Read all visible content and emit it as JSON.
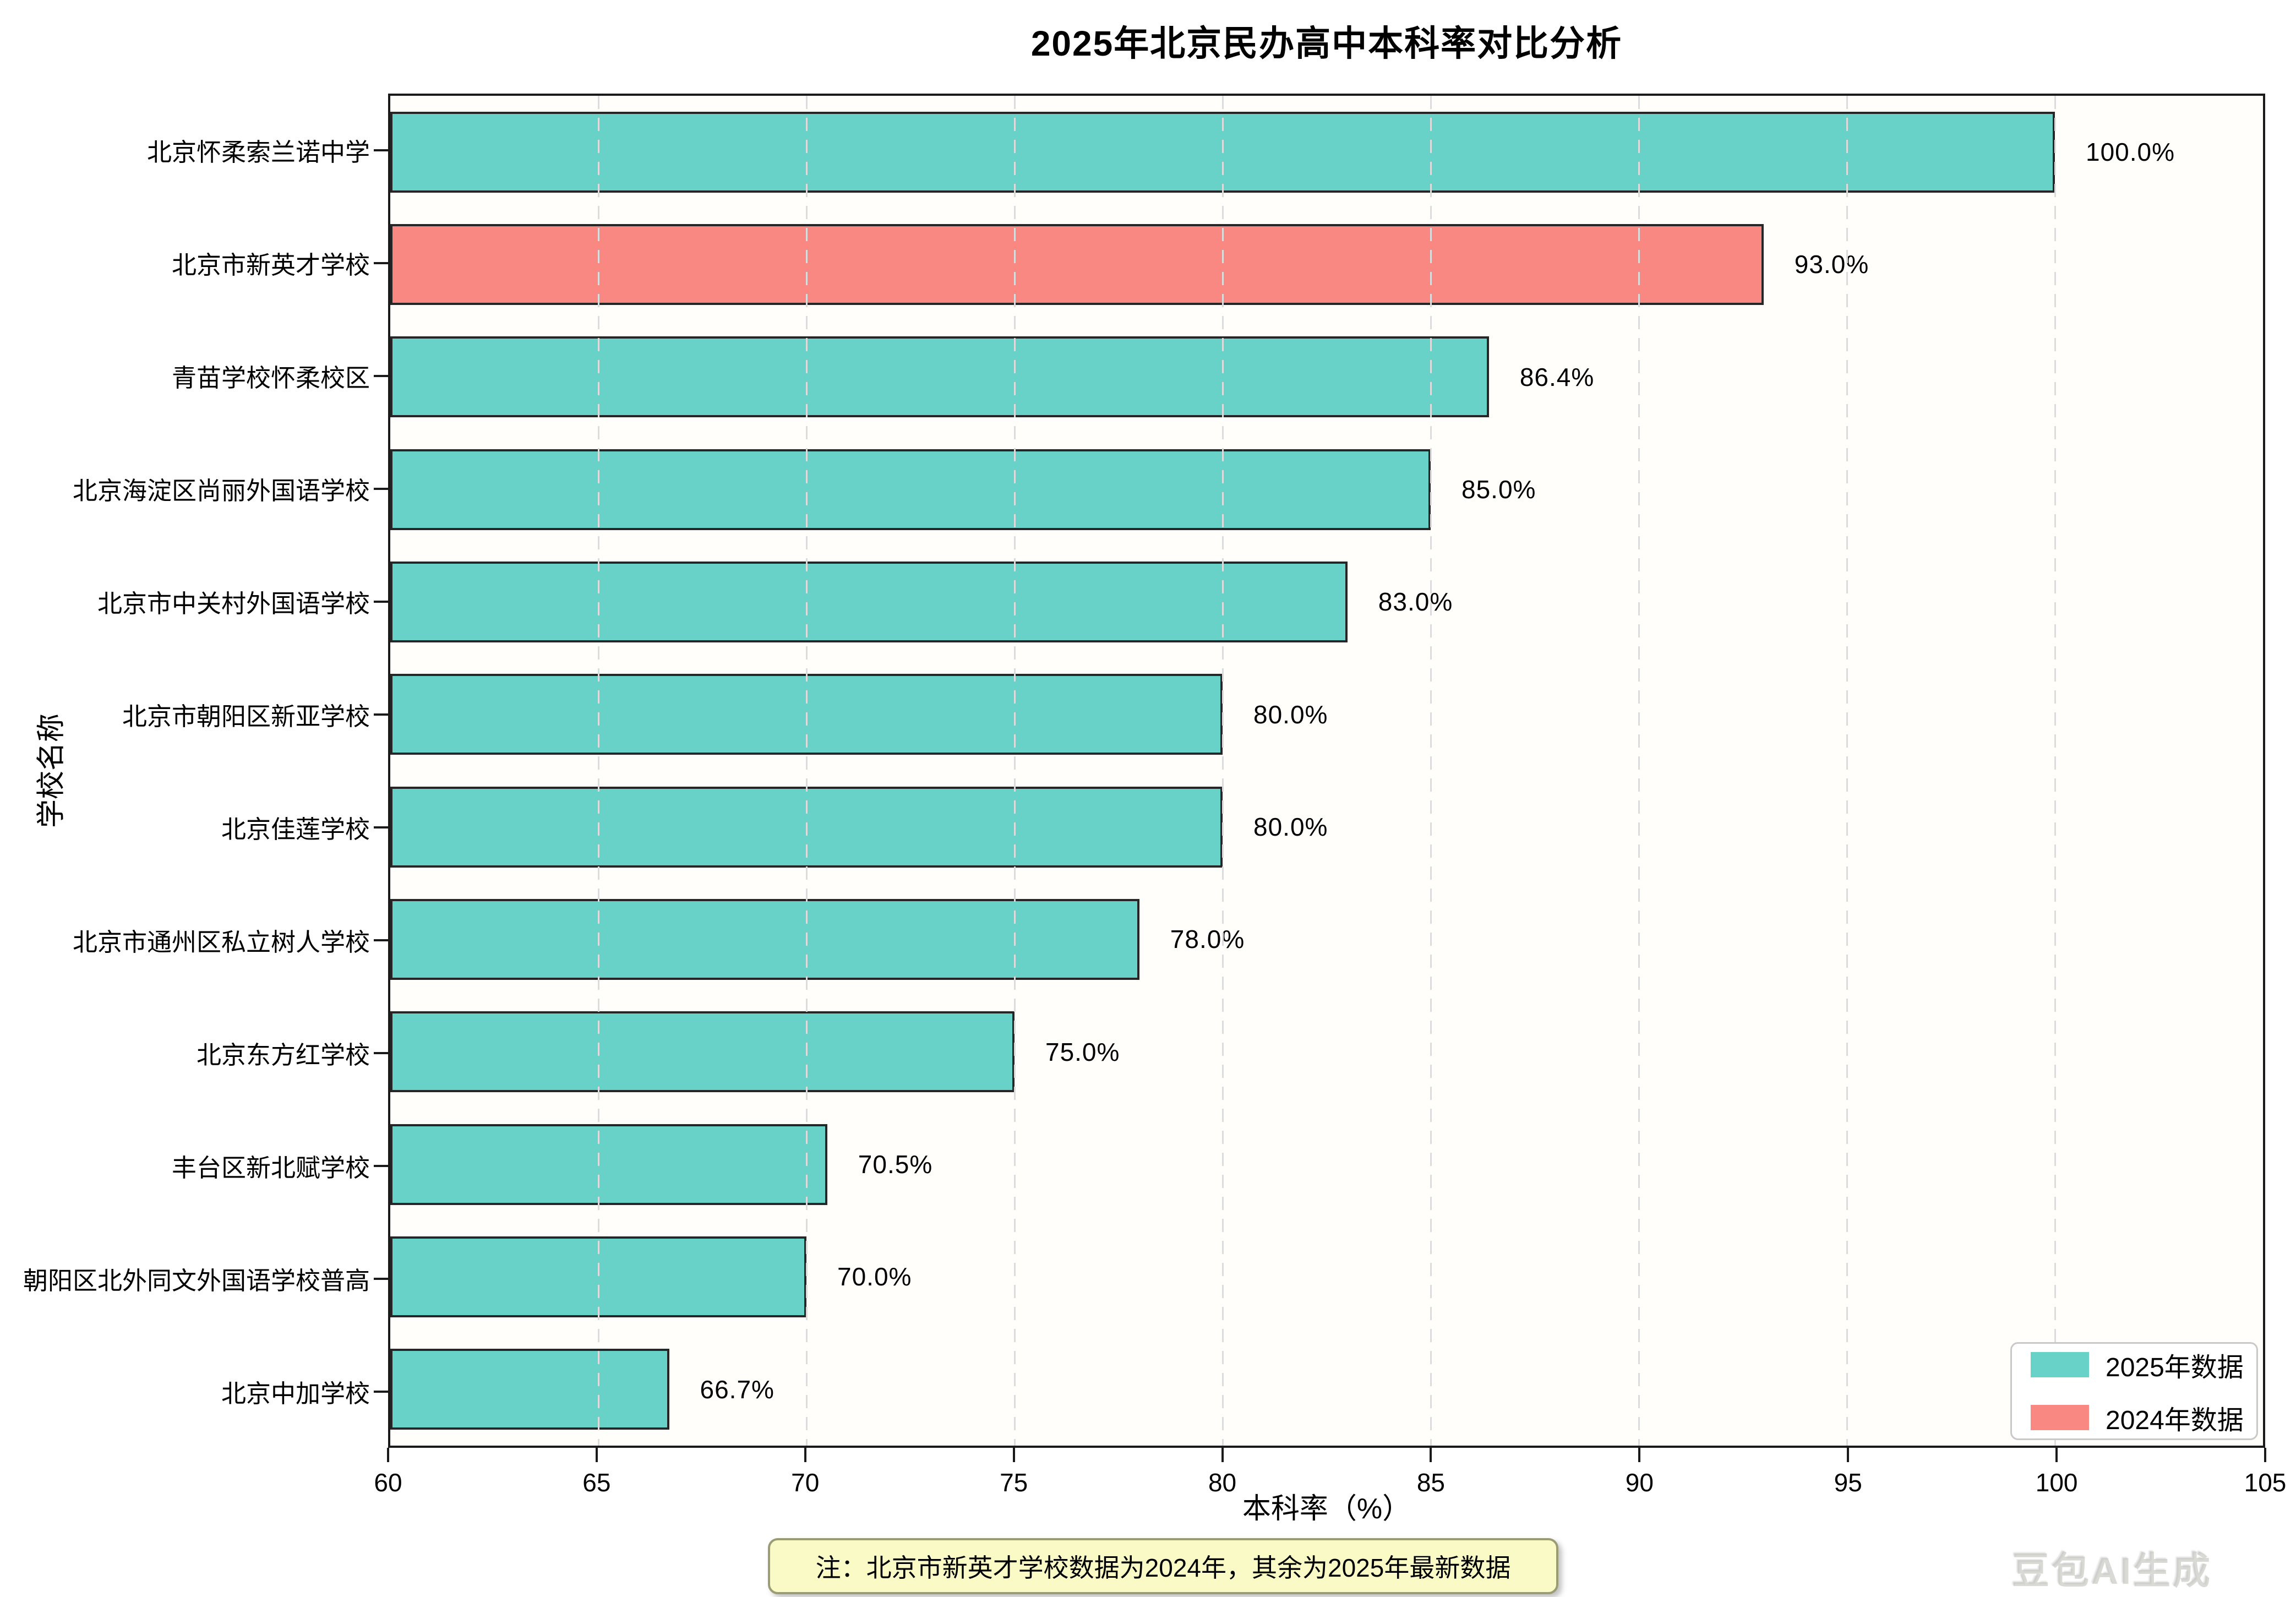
{
  "title": "2025年北京民办高中本科率对比分析",
  "note": "注：北京市新英才学校数据为2024年，其余为2025年最新数据",
  "watermark": "豆包AI生成",
  "colors": {
    "bar_2025": "#69d2c8",
    "bar_2024": "#fa8882",
    "bar_edge": "#262626",
    "grid": "#dcdcdc",
    "spine": "#1a1a1a",
    "note_bg": "#fafac6",
    "legend_border": "#c9c9c9"
  },
  "chart_data": {
    "type": "bar",
    "orientation": "horizontal",
    "title": "2025年北京民办高中本科率对比分析",
    "xlabel": "本科率（%）",
    "ylabel": "学校名称",
    "xlim": [
      60,
      105
    ],
    "x_ticks": [
      60,
      65,
      70,
      75,
      80,
      85,
      90,
      95,
      100,
      105
    ],
    "grid": "vertical dashed at each x tick",
    "legend_position": "lower right",
    "categories": [
      "北京怀柔索兰诺中学",
      "北京市新英才学校",
      "青苗学校怀柔校区",
      "北京海淀区尚丽外国语学校",
      "北京市中关村外国语学校",
      "北京市朝阳区新亚学校",
      "北京佳莲学校",
      "北京市通州区私立树人学校",
      "北京东方红学校",
      "丰台区新北赋学校",
      "朝阳区北外同文外国语学校普高",
      "北京中加学校"
    ],
    "values": [
      100.0,
      93.0,
      86.4,
      85.0,
      83.0,
      80.0,
      80.0,
      78.0,
      75.0,
      70.5,
      70.0,
      66.7
    ],
    "value_labels": [
      "100.0%",
      "93.0%",
      "86.4%",
      "85.0%",
      "83.0%",
      "80.0%",
      "80.0%",
      "78.0%",
      "75.0%",
      "70.5%",
      "70.0%",
      "66.7%"
    ],
    "series_key": [
      "2025",
      "2024",
      "2025",
      "2025",
      "2025",
      "2025",
      "2025",
      "2025",
      "2025",
      "2025",
      "2025",
      "2025"
    ],
    "legend": {
      "items": [
        {
          "label": "2025年数据",
          "key": "2025",
          "color": "#69d2c8"
        },
        {
          "label": "2024年数据",
          "key": "2024",
          "color": "#fa8882"
        }
      ]
    }
  }
}
